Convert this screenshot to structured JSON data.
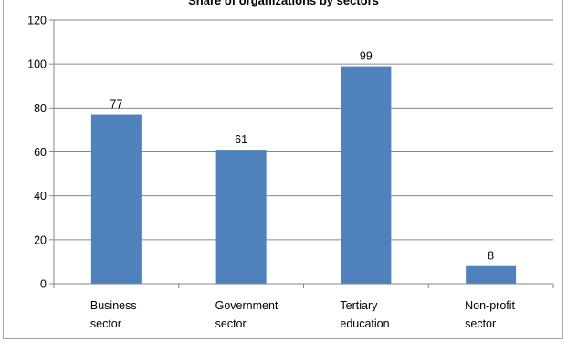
{
  "chart_data": {
    "type": "bar",
    "title": "Share of organizations by sectors",
    "categories": [
      [
        "Business",
        "sector"
      ],
      [
        "Government",
        "sector"
      ],
      [
        "Tertiary",
        "education"
      ],
      [
        "Non-profit",
        "sector"
      ]
    ],
    "values": [
      77,
      61,
      99,
      8
    ],
    "ylim": [
      0,
      120
    ],
    "yticks": [
      0,
      20,
      40,
      60,
      80,
      100,
      120
    ],
    "xlabel": "",
    "ylabel": "",
    "grid": true,
    "legend": "none",
    "bar_color": "#4f81bd",
    "grid_color": "#868686",
    "axis_color": "#868686"
  }
}
